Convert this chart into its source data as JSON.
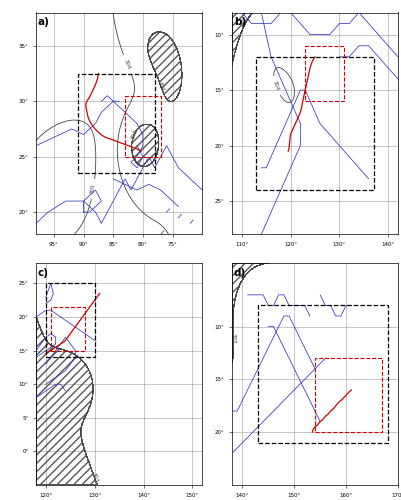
{
  "background_color": "#ffffff",
  "contour_color": "#444444",
  "blue_color": "#3333bb",
  "track_color": "#cc0000",
  "grid_color": "#999999",
  "hatch_color": "#555555",
  "panels": [
    "a)",
    "b)",
    "c)",
    "d)"
  ]
}
